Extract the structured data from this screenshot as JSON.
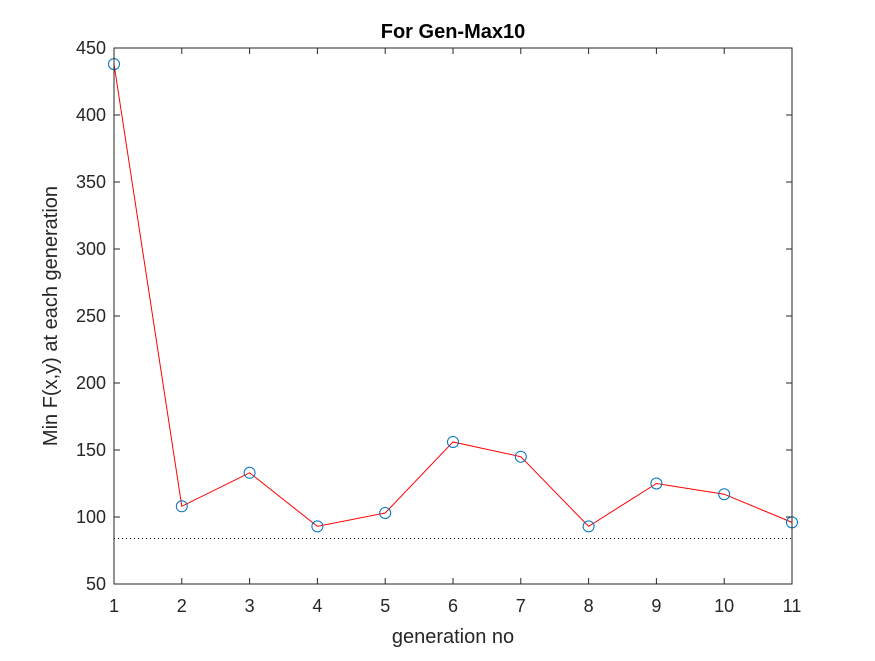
{
  "chart_data": {
    "type": "line",
    "title": "For Gen-Max10",
    "xlabel": "generation no",
    "ylabel": "Min F(x,y) at each generation",
    "xlim": [
      1,
      11
    ],
    "ylim": [
      50,
      450
    ],
    "xticks": [
      1,
      2,
      3,
      4,
      5,
      6,
      7,
      8,
      9,
      10,
      11
    ],
    "yticks": [
      50,
      100,
      150,
      200,
      250,
      300,
      350,
      400,
      450
    ],
    "grid": false,
    "legend": "none",
    "series": [
      {
        "style": "line",
        "color": "#ff0000",
        "x": [
          1,
          2,
          3,
          4,
          5,
          6,
          7,
          8,
          9,
          10,
          11
        ],
        "y": [
          438,
          108,
          133,
          93,
          103,
          156,
          145,
          93,
          125,
          117,
          96
        ]
      },
      {
        "style": "markers",
        "marker": "circle",
        "color": "#0072bd",
        "x": [
          1,
          2,
          3,
          4,
          5,
          6,
          7,
          8,
          9,
          10,
          11
        ],
        "y": [
          438,
          108,
          133,
          93,
          103,
          156,
          145,
          93,
          125,
          117,
          96
        ]
      },
      {
        "style": "dotted-reference-line",
        "color": "#000000",
        "x": [
          1,
          11
        ],
        "y": [
          84,
          84
        ]
      }
    ]
  }
}
